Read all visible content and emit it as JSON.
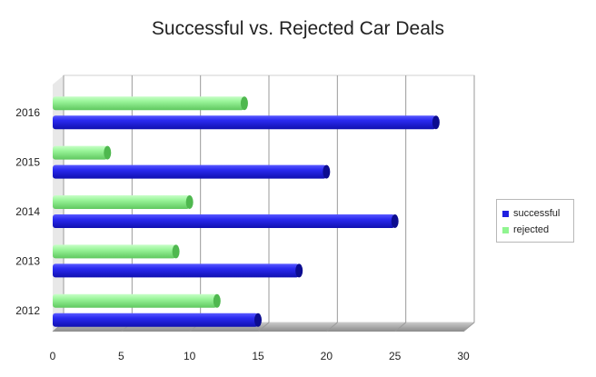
{
  "chart_data": {
    "type": "bar",
    "orientation": "horizontal",
    "title": "Successful vs. Rejected Car Deals",
    "categories": [
      "2012",
      "2013",
      "2014",
      "2015",
      "2016"
    ],
    "series": [
      {
        "name": "successful",
        "color": "#1f1fe0",
        "values": [
          15,
          18,
          25,
          20,
          28
        ]
      },
      {
        "name": "rejected",
        "color": "#90f590",
        "values": [
          12,
          9,
          10,
          4,
          14
        ]
      }
    ],
    "x_ticks": [
      0,
      5,
      10,
      15,
      20,
      25,
      30
    ],
    "xlim": [
      0,
      30
    ],
    "xlabel": "",
    "ylabel": "",
    "grid": true,
    "legend_position": "right"
  }
}
